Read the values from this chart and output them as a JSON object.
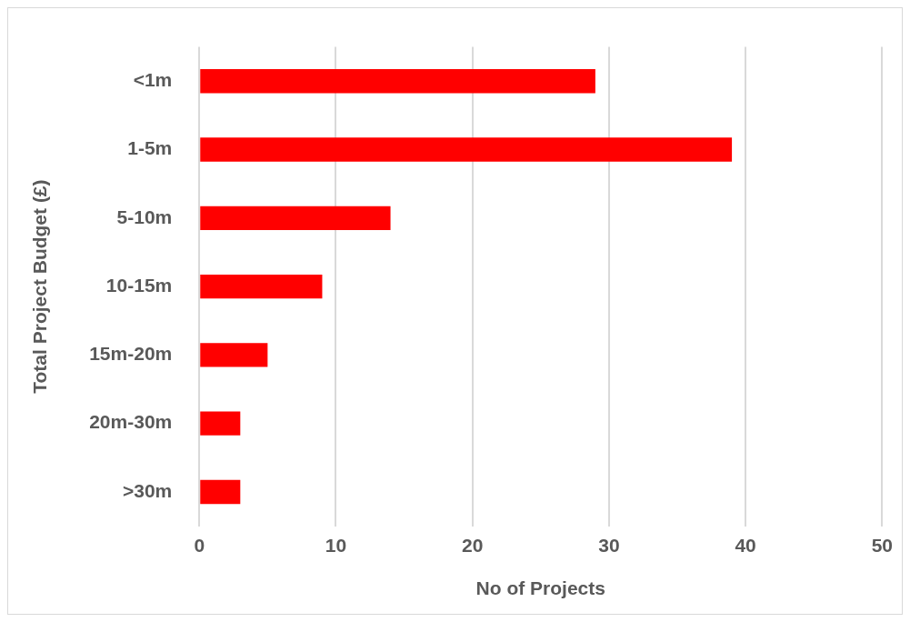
{
  "chart_data": {
    "type": "bar",
    "orientation": "horizontal",
    "xlabel": "No of Projects",
    "ylabel": "Total Project Budget (£)",
    "categories": [
      "<1m",
      "1-5m",
      "5-10m",
      "10-15m",
      "15m-20m",
      "20m-30m",
      ">30m"
    ],
    "values": [
      29,
      39,
      14,
      9,
      5,
      3,
      3
    ],
    "color": "#ff0000",
    "xlim": [
      0,
      50
    ],
    "xticks": [
      0,
      10,
      20,
      30,
      40,
      50
    ],
    "grid": "x",
    "legend": false
  }
}
